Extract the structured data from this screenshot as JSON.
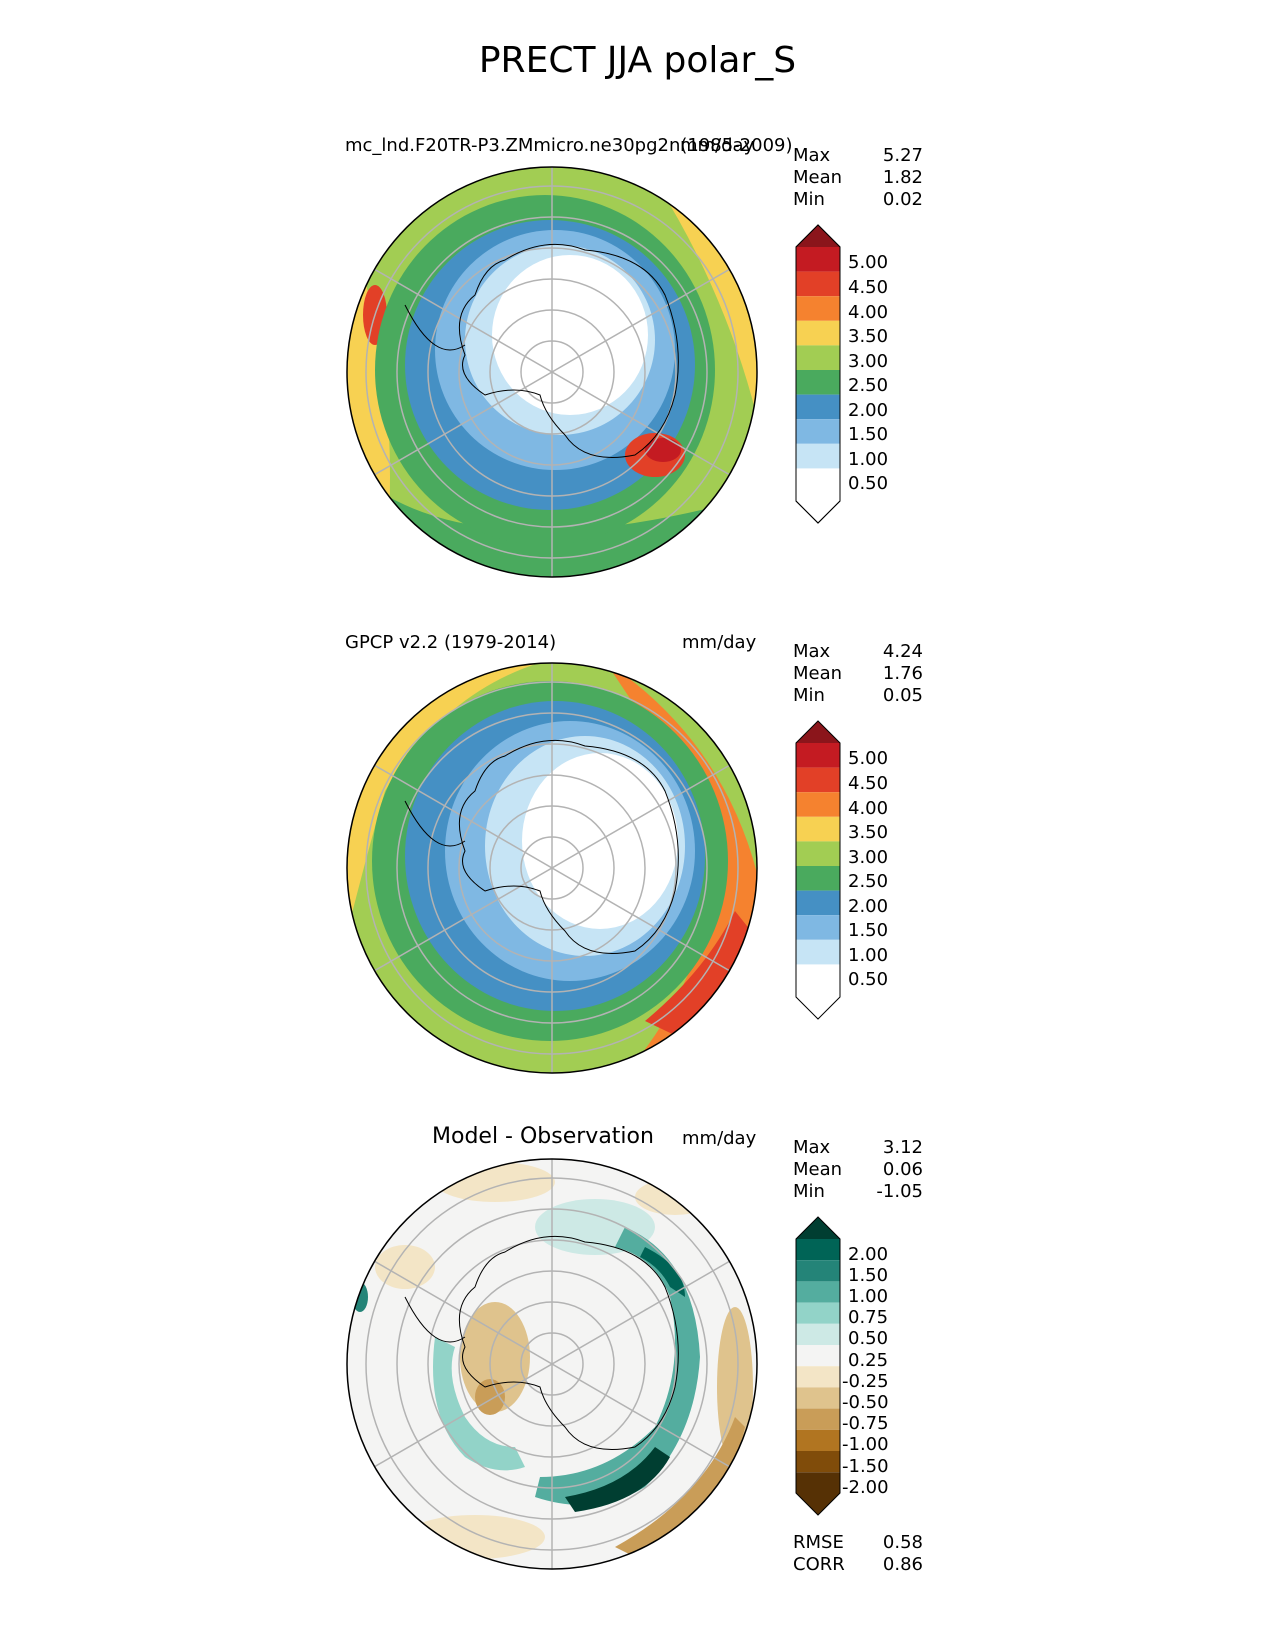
{
  "title": "PRECT JJA polar_S",
  "panels": [
    {
      "id": "test",
      "left_title": "mc_lnd.F20TR-P3.ZMmicro.ne30pg2n(1985-2009)",
      "right_title": "mm/day",
      "stats": [
        {
          "label": "Max",
          "value": "5.27"
        },
        {
          "label": "Mean",
          "value": "1.82"
        },
        {
          "label": "Min",
          "value": "0.02"
        }
      ],
      "colorbar": {
        "ticks": [
          "5.00",
          "4.50",
          "4.00",
          "3.50",
          "3.00",
          "2.50",
          "2.00",
          "1.50",
          "1.00",
          "0.50"
        ],
        "colors": [
          "#ffffff",
          "#c6e4f5",
          "#7fb8e3",
          "#4590c4",
          "#4aaa5e",
          "#a2cd53",
          "#f7d152",
          "#f5822f",
          "#e24027",
          "#c41b22",
          "#8b151b"
        ]
      }
    },
    {
      "id": "reference",
      "left_title": "GPCP v2.2 (1979-2014)",
      "right_title": "mm/day",
      "stats": [
        {
          "label": "Max",
          "value": "4.24"
        },
        {
          "label": "Mean",
          "value": "1.76"
        },
        {
          "label": "Min",
          "value": "0.05"
        }
      ],
      "colorbar": {
        "ticks": [
          "5.00",
          "4.50",
          "4.00",
          "3.50",
          "3.00",
          "2.50",
          "2.00",
          "1.50",
          "1.00",
          "0.50"
        ],
        "colors": [
          "#ffffff",
          "#c6e4f5",
          "#7fb8e3",
          "#4590c4",
          "#4aaa5e",
          "#a2cd53",
          "#f7d152",
          "#f5822f",
          "#e24027",
          "#c41b22",
          "#8b151b"
        ]
      }
    },
    {
      "id": "difference",
      "center_title": "Model - Observation",
      "right_title": "mm/day",
      "stats": [
        {
          "label": "Max",
          "value": "3.12"
        },
        {
          "label": "Mean",
          "value": "0.06"
        },
        {
          "label": "Min",
          "value": "-1.05"
        }
      ],
      "colorbar": {
        "ticks": [
          "2.00",
          "1.50",
          "1.00",
          "0.75",
          "0.50",
          "0.25",
          "-0.25",
          "-0.50",
          "-0.75",
          "-1.00",
          "-1.50",
          "-2.00"
        ],
        "colors": [
          "#563105",
          "#804c0a",
          "#b17521",
          "#c99d58",
          "#dfc38d",
          "#f3e5c6",
          "#f4f4f3",
          "#cde9e5",
          "#92d3c8",
          "#54ad9f",
          "#248478",
          "#006456",
          "#003e31"
        ]
      },
      "metrics": [
        {
          "label": "RMSE",
          "value": "0.58"
        },
        {
          "label": "CORR",
          "value": "0.86"
        }
      ]
    }
  ]
}
